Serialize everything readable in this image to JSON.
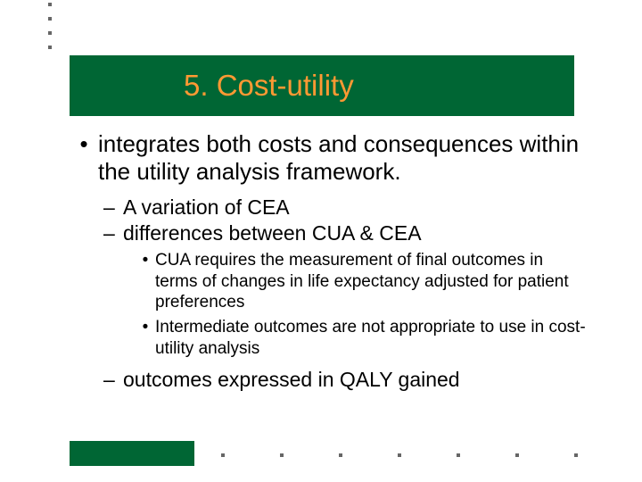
{
  "slide": {
    "title": "5.  Cost-utility",
    "title_color": "#ff9933",
    "title_bg": "#006634",
    "title_fontsize": 33,
    "bullets": {
      "level1": {
        "marker": "•",
        "text": "integrates both  costs and consequences within the utility analysis framework.",
        "fontsize": 26
      },
      "level2": [
        {
          "marker": "–",
          "text": "A variation of CEA",
          "fontsize": 23
        },
        {
          "marker": "–",
          "text": "differences between CUA & CEA",
          "fontsize": 23
        }
      ],
      "level3": [
        {
          "marker": "•",
          "text": "CUA requires the measurement of final outcomes in terms of changes in life expectancy adjusted for patient preferences",
          "fontsize": 19
        },
        {
          "marker": "•",
          "text": "Intermediate outcomes are not appropriate to use in cost-utility analysis",
          "fontsize": 19
        }
      ],
      "level2b": {
        "marker": "–",
        "text": "outcomes expressed in QALY gained",
        "fontsize": 23
      }
    },
    "decoration": {
      "dot_color": "#666666",
      "accent_block_color": "#006634",
      "top_dot_count": 4,
      "bottom_dot_count": 7
    },
    "background_color": "#ffffff",
    "text_color": "#000000"
  }
}
